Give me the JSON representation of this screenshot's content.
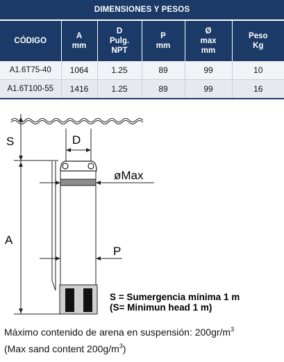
{
  "table": {
    "title": "DIMENSIONES Y PESOS",
    "headers": [
      {
        "lines": [
          "CÓDIGO"
        ]
      },
      {
        "lines": [
          "A",
          "mm"
        ]
      },
      {
        "lines": [
          "D",
          "Pulg.",
          "NPT"
        ]
      },
      {
        "lines": [
          "P",
          "mm"
        ]
      },
      {
        "lines": [
          "Ø",
          "max",
          "mm"
        ]
      },
      {
        "lines": [
          "Peso",
          "Kg"
        ]
      }
    ],
    "rows": [
      {
        "codigo": "A1.6T75-40",
        "a": "1064",
        "d": "1.25",
        "p": "89",
        "max": "99",
        "peso": "10"
      },
      {
        "codigo": "A1.6T100-55",
        "a": "1416",
        "d": "1.25",
        "p": "89",
        "max": "99",
        "peso": "16"
      }
    ]
  },
  "diagram": {
    "label_s": "S",
    "label_d": "D",
    "label_omax": "øMax",
    "label_a": "A",
    "label_p": "P"
  },
  "legend": {
    "line1": "S = Sumergencia mínima  1 m",
    "line2": "(S= Minimun head 1 m)"
  },
  "note": {
    "line1_text": "Máximo contenido de arena en suspensión: 200gr/m",
    "line1_sup": "3",
    "line2_text": "(Max sand content  200g/m",
    "line2_sup": "3",
    "line2_end": ")"
  }
}
